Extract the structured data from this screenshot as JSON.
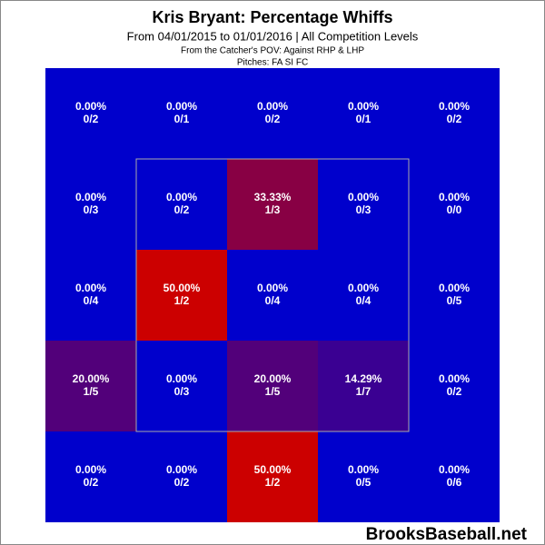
{
  "chart_data": {
    "type": "heatmap",
    "title": "Kris Bryant: Percentage Whiffs",
    "subtitle": "From 04/01/2015 to 01/01/2016 | All Competition Levels",
    "notes": [
      "From the Catcher's POV:   Against RHP & LHP",
      "Pitches:  FA  SI  FC"
    ],
    "watermark": "BrooksBaseball.net",
    "color_low": "#0000cc",
    "color_high": "#cc0000",
    "clim": [
      0,
      50
    ],
    "values": [
      [
        0,
        0,
        0,
        0,
        0
      ],
      [
        0,
        0,
        33.33,
        0,
        0
      ],
      [
        0,
        50,
        0,
        0,
        0
      ],
      [
        20,
        0,
        20,
        14.29,
        0
      ],
      [
        0,
        0,
        50,
        0,
        0
      ]
    ],
    "value_labels": [
      [
        "0.00%",
        "0.00%",
        "0.00%",
        "0.00%",
        "0.00%"
      ],
      [
        "0.00%",
        "0.00%",
        "33.33%",
        "0.00%",
        "0.00%"
      ],
      [
        "0.00%",
        "50.00%",
        "0.00%",
        "0.00%",
        "0.00%"
      ],
      [
        "20.00%",
        "0.00%",
        "20.00%",
        "14.29%",
        "0.00%"
      ],
      [
        "0.00%",
        "0.00%",
        "50.00%",
        "0.00%",
        "0.00%"
      ]
    ],
    "counts": [
      [
        "0/2",
        "0/1",
        "0/2",
        "0/1",
        "0/2"
      ],
      [
        "0/3",
        "0/2",
        "1/3",
        "0/3",
        "0/0"
      ],
      [
        "0/4",
        "1/2",
        "0/4",
        "0/4",
        "0/5"
      ],
      [
        "1/5",
        "0/3",
        "1/5",
        "1/7",
        "0/2"
      ],
      [
        "0/2",
        "0/2",
        "1/2",
        "0/5",
        "0/6"
      ]
    ]
  }
}
